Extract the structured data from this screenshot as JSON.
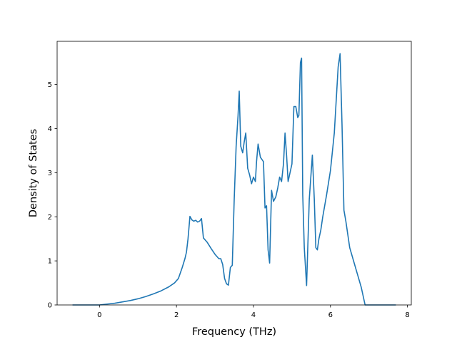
{
  "chart_data": {
    "type": "line",
    "xlabel": "Frequency (THz)",
    "ylabel": "Density of States",
    "xlim": [
      -1.1,
      8.1
    ],
    "ylim": [
      0,
      5.98
    ],
    "xticks": [
      0,
      2,
      4,
      6,
      8
    ],
    "yticks": [
      0,
      1,
      2,
      3,
      4,
      5
    ],
    "grid": false,
    "line_color": "#1f77b4",
    "series": [
      {
        "x": [
          -0.7,
          0.0,
          0.2,
          0.4,
          0.6,
          0.8,
          1.0,
          1.2,
          1.4,
          1.6,
          1.8,
          1.95,
          2.05,
          2.15,
          2.22,
          2.26,
          2.3,
          2.35,
          2.4,
          2.45,
          2.5,
          2.55,
          2.6,
          2.65,
          2.7,
          2.8,
          2.9,
          3.0,
          3.1,
          3.15,
          3.2,
          3.25,
          3.3,
          3.35,
          3.4,
          3.45,
          3.5,
          3.55,
          3.6,
          3.63,
          3.67,
          3.72,
          3.76,
          3.8,
          3.85,
          3.9,
          3.95,
          4.0,
          4.05,
          4.08,
          4.12,
          4.18,
          4.22,
          4.26,
          4.3,
          4.34,
          4.38,
          4.42,
          4.47,
          4.52,
          4.58,
          4.63,
          4.68,
          4.73,
          4.78,
          4.82,
          4.86,
          4.9,
          4.95,
          5.0,
          5.05,
          5.1,
          5.15,
          5.18,
          5.22,
          5.25,
          5.28,
          5.32,
          5.38,
          5.45,
          5.53,
          5.58,
          5.62,
          5.66,
          5.7,
          5.75,
          5.8,
          5.9,
          6.0,
          6.1,
          6.2,
          6.25,
          6.3,
          6.35,
          6.4,
          6.45,
          6.5,
          6.6,
          6.7,
          6.8,
          6.9,
          6.95,
          7.0,
          7.7
        ],
        "y": [
          0.0,
          0.0,
          0.02,
          0.04,
          0.07,
          0.1,
          0.14,
          0.19,
          0.25,
          0.32,
          0.41,
          0.5,
          0.6,
          0.85,
          1.05,
          1.2,
          1.5,
          2.01,
          1.93,
          1.9,
          1.92,
          1.88,
          1.9,
          1.96,
          1.52,
          1.42,
          1.28,
          1.15,
          1.05,
          1.05,
          0.92,
          0.6,
          0.48,
          0.45,
          0.85,
          0.9,
          2.4,
          3.6,
          4.3,
          4.85,
          3.6,
          3.45,
          3.7,
          3.9,
          3.1,
          2.95,
          2.75,
          2.9,
          2.8,
          3.25,
          3.65,
          3.35,
          3.3,
          3.25,
          2.2,
          2.25,
          1.25,
          0.95,
          2.6,
          2.35,
          2.45,
          2.65,
          2.9,
          2.8,
          3.2,
          3.9,
          3.4,
          2.8,
          3.0,
          3.2,
          4.5,
          4.5,
          4.25,
          4.3,
          5.5,
          5.6,
          2.5,
          1.3,
          0.44,
          2.4,
          3.4,
          2.4,
          1.3,
          1.25,
          1.5,
          1.7,
          2.0,
          2.5,
          3.05,
          3.9,
          5.4,
          5.7,
          4.1,
          2.15,
          1.9,
          1.6,
          1.3,
          1.0,
          0.7,
          0.4,
          0.0,
          0.0,
          0.0,
          0.0
        ]
      }
    ]
  }
}
